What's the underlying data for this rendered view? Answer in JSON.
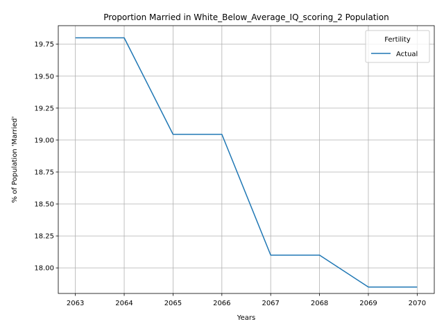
{
  "chart_data": {
    "type": "line",
    "title": "Proportion Married in White_Below_Average_IQ_scoring_2 Population",
    "xlabel": "Years",
    "ylabel": "% of Population 'Married'",
    "x": [
      2063,
      2064,
      2065,
      2066,
      2067,
      2068,
      2069,
      2070
    ],
    "xticks": [
      "2063",
      "2064",
      "2065",
      "2066",
      "2067",
      "2068",
      "2069",
      "2070"
    ],
    "yticks": [
      "18.00",
      "18.25",
      "18.50",
      "18.75",
      "19.00",
      "19.25",
      "19.50",
      "19.75"
    ],
    "ytick_values": [
      18.0,
      18.25,
      18.5,
      18.75,
      19.0,
      19.25,
      19.5,
      19.75
    ],
    "xlim": [
      2062.65,
      2070.35
    ],
    "ylim": [
      17.8,
      19.895
    ],
    "grid": true,
    "legend": {
      "title": "Fertility",
      "placement": "top-right"
    },
    "series": [
      {
        "name": "Actual",
        "color": "#1f77b4",
        "values": [
          19.8,
          19.8,
          19.045,
          19.045,
          18.1,
          18.1,
          17.85,
          17.85
        ]
      }
    ]
  }
}
